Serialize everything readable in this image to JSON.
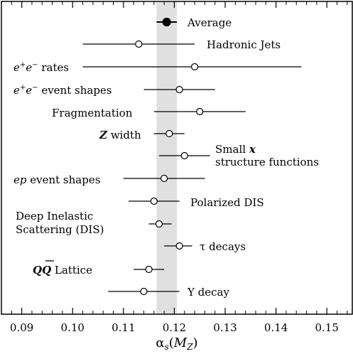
{
  "chart_data": {
    "type": "scatter",
    "subtype": "horizontal error bars",
    "xlabel": "αs(MZ)",
    "xlim": [
      0.086,
      0.155
    ],
    "xticks": [
      "0.09",
      "0.10",
      "0.11",
      "0.12",
      "0.13",
      "0.14",
      "0.15"
    ],
    "xtick_values": [
      0.09,
      0.1,
      0.11,
      0.12,
      0.13,
      0.14,
      0.15
    ],
    "band": {
      "min": 0.1165,
      "max": 0.1205,
      "color": "#e0e0e0"
    },
    "series": [
      {
        "label": "Average",
        "value": 0.1185,
        "low": 0.1165,
        "high": 0.1205,
        "marker": "filled"
      },
      {
        "label": "Hadronic Jets",
        "value": 0.113,
        "low": 0.102,
        "high": 0.124,
        "marker": "open"
      },
      {
        "label": "e+e− rates",
        "value": 0.124,
        "low": 0.102,
        "high": 0.145,
        "marker": "open"
      },
      {
        "label": "e+e− event shapes",
        "value": 0.121,
        "low": 0.114,
        "high": 0.128,
        "marker": "open"
      },
      {
        "label": "Fragmentation",
        "value": 0.125,
        "low": 0.116,
        "high": 0.134,
        "marker": "open"
      },
      {
        "label": "Z width",
        "value": 0.119,
        "low": 0.116,
        "high": 0.122,
        "marker": "open"
      },
      {
        "label": "Small x structure functions",
        "value": 0.122,
        "low": 0.117,
        "high": 0.127,
        "marker": "open"
      },
      {
        "label": "ep event shapes",
        "value": 0.118,
        "low": 0.11,
        "high": 0.126,
        "marker": "open"
      },
      {
        "label": "Polarized DIS",
        "value": 0.116,
        "low": 0.111,
        "high": 0.121,
        "marker": "open"
      },
      {
        "label": "Deep Inelastic Scattering (DIS)",
        "value": 0.117,
        "low": 0.115,
        "high": 0.1195,
        "marker": "open"
      },
      {
        "label": "τ decays",
        "value": 0.121,
        "low": 0.118,
        "high": 0.1235,
        "marker": "open"
      },
      {
        "label": "QQ̄ Lattice",
        "value": 0.115,
        "low": 0.112,
        "high": 0.118,
        "marker": "open"
      },
      {
        "label": "Υ decay",
        "value": 0.114,
        "low": 0.107,
        "high": 0.121,
        "marker": "open"
      }
    ]
  }
}
